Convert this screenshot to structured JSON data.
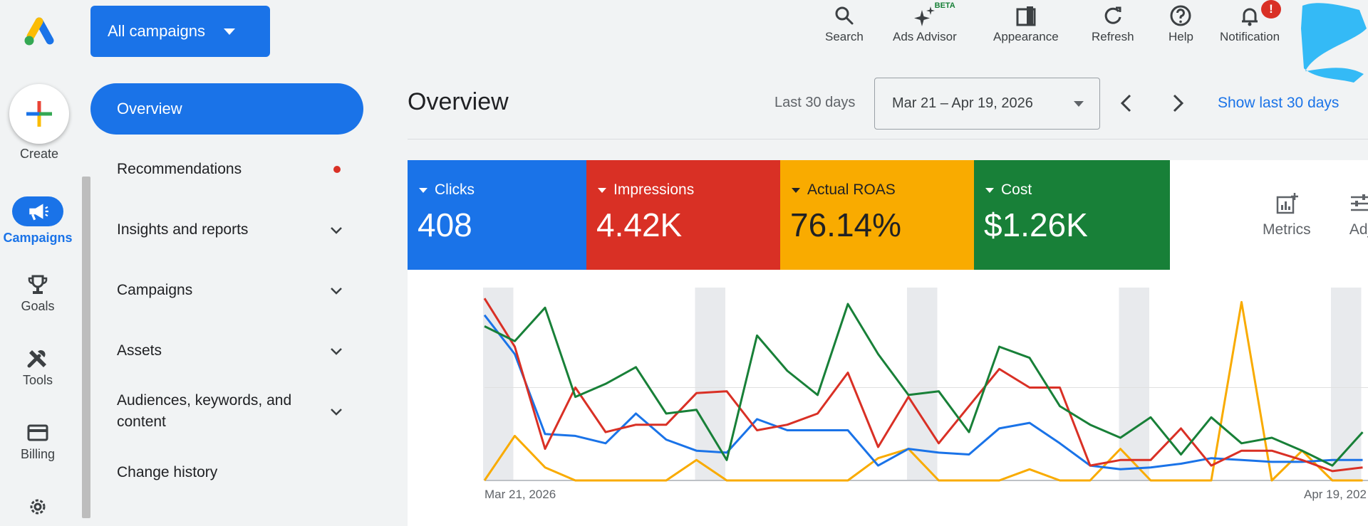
{
  "header": {
    "campaign_selector": "All campaigns",
    "icons": [
      {
        "label": "Search",
        "icon": "search-icon"
      },
      {
        "label": "Ads Advisor",
        "icon": "sparkle-icon",
        "badge": "BETA"
      },
      {
        "label": "Appearance",
        "icon": "appearance-icon"
      },
      {
        "label": "Refresh",
        "icon": "refresh-icon"
      },
      {
        "label": "Help",
        "icon": "help-icon"
      },
      {
        "label": "Notification",
        "icon": "bell-icon",
        "badge": "!"
      }
    ]
  },
  "rail": {
    "create": "Create",
    "items": [
      {
        "label": "Campaigns",
        "icon": "megaphone-icon",
        "active": true
      },
      {
        "label": "Goals",
        "icon": "trophy-icon"
      },
      {
        "label": "Tools",
        "icon": "tools-icon"
      },
      {
        "label": "Billing",
        "icon": "credit-card-icon"
      },
      {
        "label": "",
        "icon": "gear-icon"
      }
    ]
  },
  "nav": {
    "items": [
      {
        "label": "Overview",
        "active": true
      },
      {
        "label": "Recommendations",
        "dot": true
      },
      {
        "label": "Insights and reports",
        "expandable": true
      },
      {
        "label": "Campaigns",
        "expandable": true
      },
      {
        "label": "Assets",
        "expandable": true
      },
      {
        "label": "Audiences, keywords, and content",
        "expandable": true
      },
      {
        "label": "Change history"
      }
    ]
  },
  "main": {
    "title": "Overview",
    "range_label": "Last 30 days",
    "date_range": "Mar 21 – Apr 19, 2026",
    "show_last": "Show last 30 days",
    "metrics": [
      {
        "label": "Clicks",
        "value": "408",
        "color": "#1a73e8"
      },
      {
        "label": "Impressions",
        "value": "4.42K",
        "color": "#d93025"
      },
      {
        "label": "Actual ROAS",
        "value": "76.14%",
        "color": "#f9ab00"
      },
      {
        "label": "Cost",
        "value": "$1.26K",
        "color": "#188038"
      }
    ],
    "tools": [
      {
        "label": "Metrics",
        "icon": "add-chart-icon"
      },
      {
        "label": "Adj",
        "icon": "adjust-icon"
      }
    ]
  },
  "chart_data": {
    "type": "line",
    "x_start_label": "Mar 21, 2026",
    "x_end_label": "Apr 19, 202",
    "days": 30,
    "y_scale": "relative 0-100 per series",
    "series": [
      {
        "name": "Clicks",
        "color": "#1a73e8",
        "values": [
          89,
          68,
          25,
          24,
          20,
          36,
          22,
          16,
          15,
          33,
          27,
          27,
          27,
          8,
          17,
          15,
          14,
          28,
          31,
          20,
          8,
          6,
          7,
          9,
          12,
          11,
          10,
          10,
          11,
          11
        ]
      },
      {
        "name": "Impressions",
        "color": "#d93025",
        "values": [
          98,
          72,
          17,
          50,
          26,
          30,
          30,
          47,
          48,
          27,
          30,
          36,
          58,
          18,
          45,
          20,
          40,
          60,
          50,
          50,
          8,
          11,
          11,
          28,
          8,
          16,
          16,
          11,
          5,
          7
        ]
      },
      {
        "name": "Actual ROAS",
        "color": "#f9ab00",
        "values": [
          0,
          24,
          7,
          0,
          0,
          0,
          0,
          11,
          0,
          0,
          0,
          0,
          0,
          12,
          17,
          0,
          0,
          0,
          6,
          0,
          0,
          17,
          0,
          0,
          0,
          96,
          0,
          16,
          0,
          0
        ]
      },
      {
        "name": "Cost",
        "color": "#188038",
        "values": [
          83,
          75,
          93,
          45,
          52,
          61,
          36,
          38,
          11,
          78,
          59,
          46,
          95,
          68,
          46,
          48,
          26,
          72,
          66,
          40,
          30,
          23,
          34,
          14,
          34,
          20,
          23,
          16,
          8,
          26
        ]
      }
    ]
  }
}
